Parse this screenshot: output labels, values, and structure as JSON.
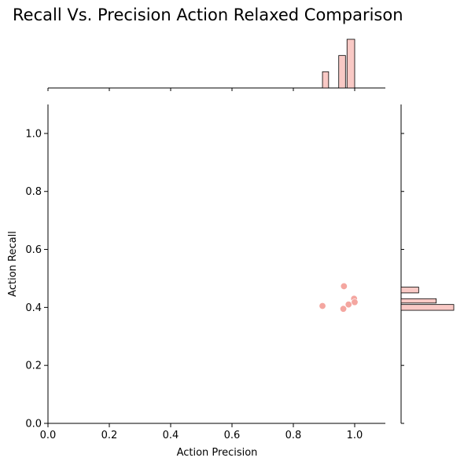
{
  "chart_data": {
    "type": "scatter",
    "title": "Recall Vs. Precision Action Relaxed Comparison",
    "xlabel": "Action Precision",
    "ylabel": "Action Recall",
    "xlim": [
      0,
      1.1
    ],
    "ylim": [
      0,
      1.1
    ],
    "xticks": [
      0.0,
      0.2,
      0.4,
      0.6,
      0.8,
      1.0
    ],
    "yticks": [
      0.0,
      0.2,
      0.4,
      0.6,
      0.8,
      1.0
    ],
    "points": [
      {
        "x": 0.895,
        "y": 0.405
      },
      {
        "x": 0.963,
        "y": 0.395
      },
      {
        "x": 0.965,
        "y": 0.473
      },
      {
        "x": 0.98,
        "y": 0.41
      },
      {
        "x": 0.998,
        "y": 0.43
      },
      {
        "x": 1.0,
        "y": 0.418
      }
    ],
    "point_color": "#f4a6a0",
    "marginal_x_hist": [
      {
        "x0": 0.895,
        "x1": 0.915,
        "count": 1
      },
      {
        "x0": 0.948,
        "x1": 0.97,
        "count": 2
      },
      {
        "x0": 0.975,
        "x1": 1.0,
        "count": 3
      }
    ],
    "marginal_y_hist": [
      {
        "y0": 0.39,
        "y1": 0.41,
        "count": 3
      },
      {
        "y0": 0.415,
        "y1": 0.43,
        "count": 2
      },
      {
        "y0": 0.45,
        "y1": 0.47,
        "count": 1
      }
    ],
    "hist_fill": "#f9c9c5",
    "hist_stroke": "#000000",
    "grid": false,
    "legend": "none"
  }
}
